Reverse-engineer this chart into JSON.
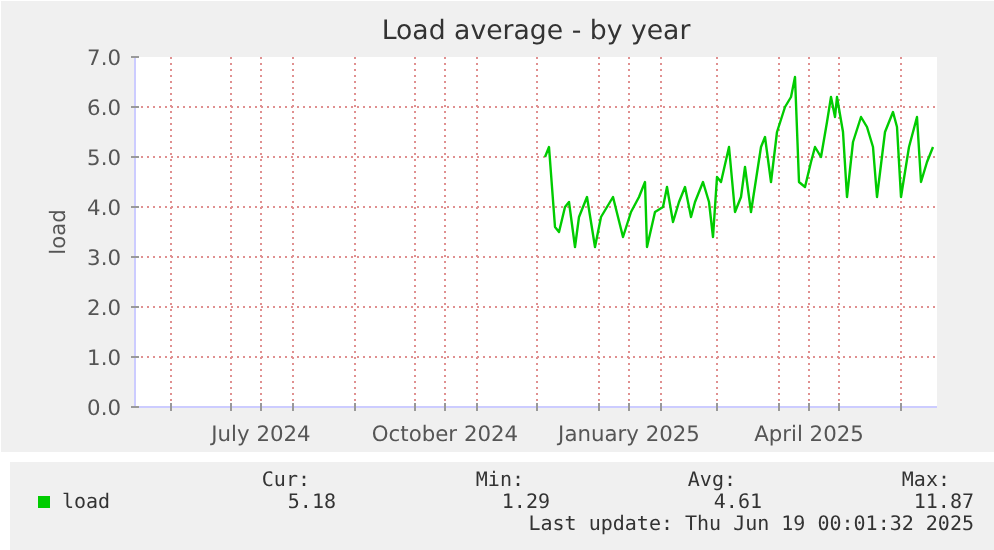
{
  "chart_data": {
    "type": "line",
    "title": "Load average - by year",
    "ylabel": "load",
    "xlim": [
      "2024-05-14",
      "2025-06-19"
    ],
    "ylim": [
      0,
      7
    ],
    "yticks": [
      {
        "value": 0,
        "label": "0.0"
      },
      {
        "value": 1,
        "label": "1.0"
      },
      {
        "value": 2,
        "label": "2.0"
      },
      {
        "value": 3,
        "label": "3.0"
      },
      {
        "value": 4,
        "label": "4.0"
      },
      {
        "value": 5,
        "label": "5.0"
      },
      {
        "value": 6,
        "label": "6.0"
      },
      {
        "value": 7,
        "label": "7.0"
      }
    ],
    "xticks": [
      {
        "value": "2024-06-01",
        "label": null
      },
      {
        "value": "2024-07-01",
        "label": null
      },
      {
        "value": "2024-07-16",
        "label": "July 2024"
      },
      {
        "value": "2024-08-01",
        "label": null
      },
      {
        "value": "2024-09-01",
        "label": null
      },
      {
        "value": "2024-10-01",
        "label": null
      },
      {
        "value": "2024-10-16",
        "label": "October 2024"
      },
      {
        "value": "2024-11-01",
        "label": null
      },
      {
        "value": "2024-12-01",
        "label": null
      },
      {
        "value": "2025-01-01",
        "label": null
      },
      {
        "value": "2025-01-16",
        "label": "January 2025"
      },
      {
        "value": "2025-02-01",
        "label": null
      },
      {
        "value": "2025-03-01",
        "label": null
      },
      {
        "value": "2025-04-01",
        "label": null
      },
      {
        "value": "2025-04-16",
        "label": "April 2025"
      },
      {
        "value": "2025-05-01",
        "label": null
      },
      {
        "value": "2025-06-01",
        "label": null
      }
    ],
    "grid": true,
    "legend": "bottom left",
    "marker": "none",
    "line_style": "solid",
    "x": [
      "2024-12-05",
      "2024-12-07",
      "2024-12-10",
      "2024-12-12",
      "2024-12-15",
      "2024-12-17",
      "2024-12-20",
      "2024-12-22",
      "2024-12-26",
      "2024-12-30",
      "2025-01-02",
      "2025-01-05",
      "2025-01-08",
      "2025-01-13",
      "2025-01-17",
      "2025-01-21",
      "2025-01-24",
      "2025-01-25",
      "2025-01-29",
      "2025-02-02",
      "2025-02-04",
      "2025-02-07",
      "2025-02-10",
      "2025-02-13",
      "2025-02-16",
      "2025-02-18",
      "2025-02-22",
      "2025-02-25",
      "2025-02-27",
      "2025-03-01",
      "2025-03-03",
      "2025-03-07",
      "2025-03-10",
      "2025-03-13",
      "2025-03-15",
      "2025-03-18",
      "2025-03-23",
      "2025-03-25",
      "2025-03-28",
      "2025-03-31",
      "2025-04-04",
      "2025-04-07",
      "2025-04-09",
      "2025-04-11",
      "2025-04-14",
      "2025-04-17",
      "2025-04-19",
      "2025-04-22",
      "2025-04-25",
      "2025-04-27",
      "2025-04-29",
      "2025-04-30",
      "2025-05-03",
      "2025-05-05",
      "2025-05-08",
      "2025-05-12",
      "2025-05-15",
      "2025-05-18",
      "2025-05-20",
      "2025-05-24",
      "2025-05-28",
      "2025-05-30",
      "2025-06-01",
      "2025-06-05",
      "2025-06-09",
      "2025-06-11",
      "2025-06-14",
      "2025-06-17"
    ],
    "series": [
      {
        "name": "load",
        "color": "#00cc00",
        "values": [
          5.0,
          5.2,
          3.6,
          3.5,
          4.0,
          4.1,
          3.2,
          3.8,
          4.2,
          3.2,
          3.8,
          4.0,
          4.2,
          3.4,
          3.9,
          4.2,
          4.5,
          3.2,
          3.9,
          4.0,
          4.4,
          3.7,
          4.1,
          4.4,
          3.8,
          4.1,
          4.5,
          4.1,
          3.4,
          4.6,
          4.5,
          5.2,
          3.9,
          4.2,
          4.8,
          3.9,
          5.2,
          5.4,
          4.5,
          5.5,
          6.0,
          6.2,
          6.6,
          4.5,
          4.4,
          4.9,
          5.2,
          5.0,
          5.7,
          6.2,
          5.8,
          6.2,
          5.5,
          4.2,
          5.3,
          5.8,
          5.6,
          5.2,
          4.2,
          5.5,
          5.9,
          5.6,
          4.2,
          5.2,
          5.8,
          4.5,
          4.9,
          5.2
        ]
      }
    ],
    "annotations": [
      "Cur:",
      "Min:",
      "Avg:",
      "Max:",
      "5.18",
      "1.29",
      "4.61",
      "11.87",
      "Last update: Thu Jun 19 00:01:32 2025"
    ]
  }
}
